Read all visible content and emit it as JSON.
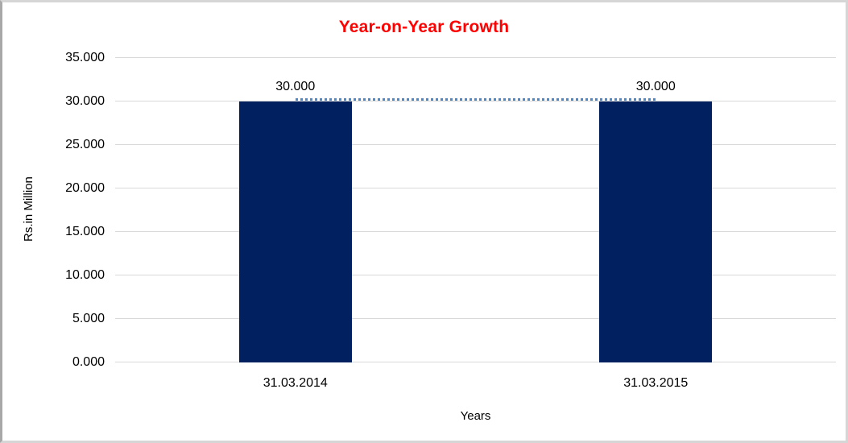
{
  "chart_data": {
    "type": "bar",
    "title": "Year-on-Year Growth",
    "categories": [
      "31.03.2014",
      "31.03.2015"
    ],
    "values": [
      30.0,
      30.0
    ],
    "data_labels": [
      "30.000",
      "30.000"
    ],
    "xlabel": "Years",
    "ylabel": "Rs.in Million",
    "ylim": [
      0,
      35
    ],
    "ytick_step": 5,
    "ytick_labels": [
      "35.000",
      "30.000",
      "25.000",
      "20.000",
      "15.000",
      "10.000",
      "5.000",
      "0.000"
    ],
    "grid": true,
    "legend": false,
    "connector_line": {
      "style": "dotted",
      "y": 30.0,
      "spans": "between bar centers"
    },
    "colors": {
      "title": "#FF0000",
      "bar": "#002060",
      "connector_line": "#4A86C8",
      "gridline": "#D9D9D9",
      "axis_text": "#000000",
      "background": "#FFFFFF",
      "frame_border": "#D3D3D3"
    }
  }
}
